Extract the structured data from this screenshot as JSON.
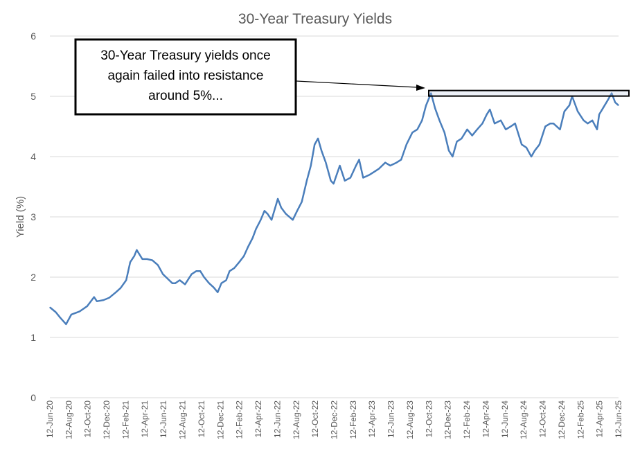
{
  "chart_data": {
    "type": "line",
    "title": "30-Year Treasury Yields",
    "xlabel": "",
    "ylabel": "Yield (%)",
    "ylim": [
      0,
      6
    ],
    "yticks": [
      "0",
      "1",
      "2",
      "3",
      "4",
      "5",
      "6"
    ],
    "x_tick_labels": [
      "12-Jun-20",
      "12-Aug-20",
      "12-Oct-20",
      "12-Dec-20",
      "12-Feb-21",
      "12-Apr-21",
      "12-Jun-21",
      "12-Aug-21",
      "12-Oct-21",
      "12-Dec-21",
      "12-Feb-22",
      "12-Apr-22",
      "12-Jun-22",
      "12-Aug-22",
      "12-Oct-22",
      "12-Dec-22",
      "12-Feb-23",
      "12-Apr-23",
      "12-Jun-23",
      "12-Aug-23",
      "12-Oct-23",
      "12-Dec-23",
      "12-Feb-24",
      "12-Apr-24",
      "12-Jun-24",
      "12-Aug-24",
      "12-Oct-24",
      "12-Dec-24",
      "12-Feb-25",
      "12-Apr-25",
      "12-Jun-25"
    ],
    "grid": "horizontal",
    "series": [
      {
        "color": "#4a7ebb",
        "x": [
          "2020-06-12",
          "2020-07-01",
          "2020-07-15",
          "2020-08-03",
          "2020-08-20",
          "2020-09-15",
          "2020-10-10",
          "2020-11-01",
          "2020-11-10",
          "2020-12-01",
          "2020-12-20",
          "2021-01-10",
          "2021-01-25",
          "2021-02-12",
          "2021-02-25",
          "2021-03-10",
          "2021-03-18",
          "2021-04-05",
          "2021-04-20",
          "2021-05-07",
          "2021-05-25",
          "2021-06-10",
          "2021-06-20",
          "2021-07-10",
          "2021-07-20",
          "2021-08-03",
          "2021-08-20",
          "2021-09-10",
          "2021-09-25",
          "2021-10-08",
          "2021-10-20",
          "2021-11-05",
          "2021-11-20",
          "2021-12-03",
          "2021-12-15",
          "2021-12-30",
          "2022-01-10",
          "2022-01-25",
          "2022-02-10",
          "2022-02-25",
          "2022-03-10",
          "2022-03-25",
          "2022-04-05",
          "2022-04-20",
          "2022-05-02",
          "2022-05-12",
          "2022-05-25",
          "2022-06-14",
          "2022-06-25",
          "2022-07-10",
          "2022-08-01",
          "2022-08-15",
          "2022-08-30",
          "2022-09-15",
          "2022-09-28",
          "2022-10-10",
          "2022-10-21",
          "2022-11-01",
          "2022-11-15",
          "2022-12-01",
          "2022-12-10",
          "2022-12-30",
          "2023-01-15",
          "2023-02-02",
          "2023-02-20",
          "2023-03-02",
          "2023-03-15",
          "2023-04-05",
          "2023-04-20",
          "2023-05-05",
          "2023-05-25",
          "2023-06-10",
          "2023-06-30",
          "2023-07-15",
          "2023-08-01",
          "2023-08-20",
          "2023-09-05",
          "2023-09-20",
          "2023-10-03",
          "2023-10-19",
          "2023-11-01",
          "2023-11-15",
          "2023-12-01",
          "2023-12-15",
          "2023-12-27",
          "2024-01-10",
          "2024-01-25",
          "2024-02-12",
          "2024-02-28",
          "2024-03-15",
          "2024-04-01",
          "2024-04-15",
          "2024-04-25",
          "2024-05-10",
          "2024-05-30",
          "2024-06-15",
          "2024-07-01",
          "2024-07-15",
          "2024-08-05",
          "2024-08-20",
          "2024-09-05",
          "2024-09-16",
          "2024-10-01",
          "2024-10-20",
          "2024-11-05",
          "2024-11-15",
          "2024-12-06",
          "2024-12-20",
          "2025-01-05",
          "2025-01-14",
          "2025-02-01",
          "2025-02-20",
          "2025-03-05",
          "2025-03-20",
          "2025-04-04",
          "2025-04-11",
          "2025-04-25",
          "2025-05-10",
          "2025-05-21",
          "2025-06-01",
          "2025-06-12"
        ],
        "y": [
          1.5,
          1.42,
          1.33,
          1.22,
          1.38,
          1.43,
          1.52,
          1.67,
          1.6,
          1.62,
          1.66,
          1.75,
          1.82,
          1.95,
          2.25,
          2.35,
          2.45,
          2.3,
          2.3,
          2.28,
          2.2,
          2.05,
          2.0,
          1.9,
          1.9,
          1.95,
          1.88,
          2.05,
          2.1,
          2.1,
          2.0,
          1.9,
          1.83,
          1.75,
          1.9,
          1.95,
          2.1,
          2.15,
          2.25,
          2.35,
          2.5,
          2.65,
          2.8,
          2.95,
          3.1,
          3.05,
          2.95,
          3.3,
          3.15,
          3.05,
          2.95,
          3.1,
          3.25,
          3.6,
          3.85,
          4.2,
          4.3,
          4.1,
          3.9,
          3.6,
          3.55,
          3.85,
          3.6,
          3.65,
          3.85,
          3.95,
          3.65,
          3.7,
          3.75,
          3.8,
          3.9,
          3.85,
          3.9,
          3.95,
          4.2,
          4.4,
          4.45,
          4.6,
          4.85,
          5.05,
          4.8,
          4.6,
          4.4,
          4.1,
          4.0,
          4.25,
          4.3,
          4.45,
          4.35,
          4.45,
          4.55,
          4.7,
          4.78,
          4.55,
          4.6,
          4.45,
          4.5,
          4.55,
          4.2,
          4.15,
          4.0,
          4.1,
          4.2,
          4.5,
          4.55,
          4.55,
          4.45,
          4.75,
          4.85,
          5.0,
          4.75,
          4.6,
          4.55,
          4.6,
          4.45,
          4.7,
          4.82,
          4.95,
          5.05,
          4.9,
          4.85
        ]
      }
    ],
    "annotation": {
      "lines": [
        "30-Year Treasury yields once",
        "again failed into resistance",
        "around 5%..."
      ]
    },
    "resistance_level": 5.05
  }
}
